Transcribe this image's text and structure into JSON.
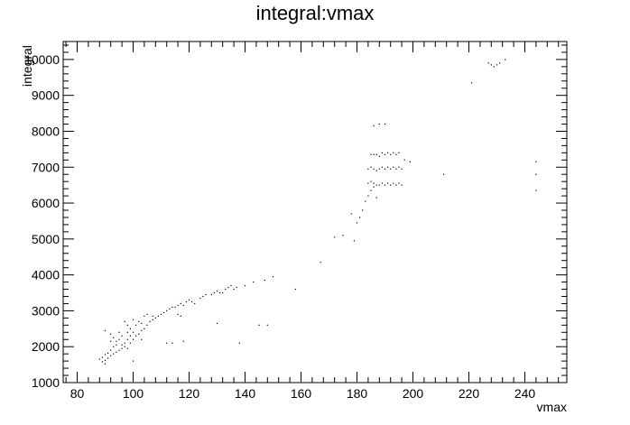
{
  "chart_data": {
    "type": "scatter",
    "title": "integral:vmax",
    "xlabel": "vmax",
    "ylabel": "integral",
    "xlim": [
      75,
      255
    ],
    "ylim": [
      1000,
      10500
    ],
    "xticks": [
      80,
      100,
      120,
      140,
      160,
      180,
      200,
      220,
      240
    ],
    "yticks": [
      1000,
      2000,
      3000,
      4000,
      5000,
      6000,
      7000,
      8000,
      9000
    ],
    "ytick_label_overrides": {
      "10000": "10000"
    },
    "grid": false,
    "legend": "none",
    "marker_color": "#000000",
    "points": [
      [
        88,
        1650
      ],
      [
        89,
        1580
      ],
      [
        89,
        1700
      ],
      [
        90,
        1520
      ],
      [
        90,
        1620
      ],
      [
        90,
        1780
      ],
      [
        90,
        2450
      ],
      [
        91,
        1680
      ],
      [
        91,
        1820
      ],
      [
        92,
        1750
      ],
      [
        92,
        1900
      ],
      [
        92,
        2150
      ],
      [
        92,
        2350
      ],
      [
        93,
        1800
      ],
      [
        93,
        2000
      ],
      [
        93,
        2250
      ],
      [
        94,
        1850
      ],
      [
        94,
        2050
      ],
      [
        94,
        2150
      ],
      [
        95,
        1900
      ],
      [
        95,
        2200
      ],
      [
        95,
        2400
      ],
      [
        96,
        1950
      ],
      [
        96,
        2050
      ],
      [
        96,
        2300
      ],
      [
        97,
        2000
      ],
      [
        97,
        2100
      ],
      [
        97,
        2700
      ],
      [
        98,
        1950
      ],
      [
        98,
        2200
      ],
      [
        98,
        2400
      ],
      [
        98,
        2600
      ],
      [
        99,
        2100
      ],
      [
        99,
        2300
      ],
      [
        99,
        2500
      ],
      [
        100,
        1600
      ],
      [
        100,
        2200
      ],
      [
        100,
        2400
      ],
      [
        100,
        2750
      ],
      [
        101,
        2300
      ],
      [
        101,
        2600
      ],
      [
        102,
        2350
      ],
      [
        102,
        2700
      ],
      [
        103,
        2200
      ],
      [
        103,
        2450
      ],
      [
        103,
        2650
      ],
      [
        104,
        2500
      ],
      [
        104,
        2850
      ],
      [
        105,
        2600
      ],
      [
        105,
        2900
      ],
      [
        106,
        2700
      ],
      [
        107,
        2750
      ],
      [
        107,
        2850
      ],
      [
        108,
        2800
      ],
      [
        109,
        2850
      ],
      [
        110,
        2900
      ],
      [
        111,
        2950
      ],
      [
        112,
        3000
      ],
      [
        112,
        2100
      ],
      [
        113,
        3050
      ],
      [
        114,
        3100
      ],
      [
        114,
        2100
      ],
      [
        115,
        3100
      ],
      [
        116,
        3150
      ],
      [
        116,
        2900
      ],
      [
        117,
        3200
      ],
      [
        117,
        2850
      ],
      [
        118,
        2150
      ],
      [
        118,
        3150
      ],
      [
        119,
        3250
      ],
      [
        120,
        3300
      ],
      [
        121,
        3250
      ],
      [
        122,
        3200
      ],
      [
        124,
        3350
      ],
      [
        125,
        3400
      ],
      [
        126,
        3450
      ],
      [
        128,
        3450
      ],
      [
        129,
        3500
      ],
      [
        130,
        3550
      ],
      [
        130,
        2650
      ],
      [
        131,
        3500
      ],
      [
        132,
        3500
      ],
      [
        133,
        3600
      ],
      [
        134,
        3650
      ],
      [
        135,
        3700
      ],
      [
        136,
        3600
      ],
      [
        137,
        3650
      ],
      [
        138,
        2100
      ],
      [
        140,
        3700
      ],
      [
        143,
        3800
      ],
      [
        145,
        2600
      ],
      [
        147,
        3850
      ],
      [
        148,
        2600
      ],
      [
        150,
        3950
      ],
      [
        158,
        3600
      ],
      [
        167,
        4350
      ],
      [
        172,
        5050
      ],
      [
        175,
        5100
      ],
      [
        178,
        5700
      ],
      [
        179,
        4950
      ],
      [
        180,
        5450
      ],
      [
        181,
        5600
      ],
      [
        182,
        5800
      ],
      [
        183,
        6050
      ],
      [
        184,
        6200
      ],
      [
        184,
        6550
      ],
      [
        184,
        6950
      ],
      [
        185,
        6350
      ],
      [
        185,
        6600
      ],
      [
        185,
        7000
      ],
      [
        185,
        7350
      ],
      [
        186,
        6450
      ],
      [
        186,
        6550
      ],
      [
        186,
        6950
      ],
      [
        186,
        7350
      ],
      [
        186,
        8150
      ],
      [
        187,
        6150
      ],
      [
        187,
        6500
      ],
      [
        187,
        6900
      ],
      [
        187,
        7350
      ],
      [
        188,
        6500
      ],
      [
        188,
        6950
      ],
      [
        188,
        7300
      ],
      [
        188,
        8200
      ],
      [
        189,
        6550
      ],
      [
        189,
        7000
      ],
      [
        189,
        7400
      ],
      [
        190,
        6500
      ],
      [
        190,
        6950
      ],
      [
        190,
        7350
      ],
      [
        190,
        8200
      ],
      [
        191,
        6550
      ],
      [
        191,
        7000
      ],
      [
        191,
        7400
      ],
      [
        192,
        6500
      ],
      [
        192,
        6950
      ],
      [
        192,
        7350
      ],
      [
        193,
        6550
      ],
      [
        193,
        7000
      ],
      [
        193,
        7400
      ],
      [
        194,
        6500
      ],
      [
        194,
        6950
      ],
      [
        194,
        7350
      ],
      [
        195,
        6550
      ],
      [
        195,
        7000
      ],
      [
        195,
        7400
      ],
      [
        196,
        6500
      ],
      [
        196,
        6950
      ],
      [
        197,
        7200
      ],
      [
        199,
        7150
      ],
      [
        211,
        6800
      ],
      [
        221,
        9350
      ],
      [
        227,
        9900
      ],
      [
        228,
        9850
      ],
      [
        229,
        9800
      ],
      [
        230,
        9850
      ],
      [
        231,
        9900
      ],
      [
        233,
        10000
      ],
      [
        244,
        6350
      ],
      [
        244,
        6800
      ],
      [
        244,
        7150
      ]
    ]
  }
}
